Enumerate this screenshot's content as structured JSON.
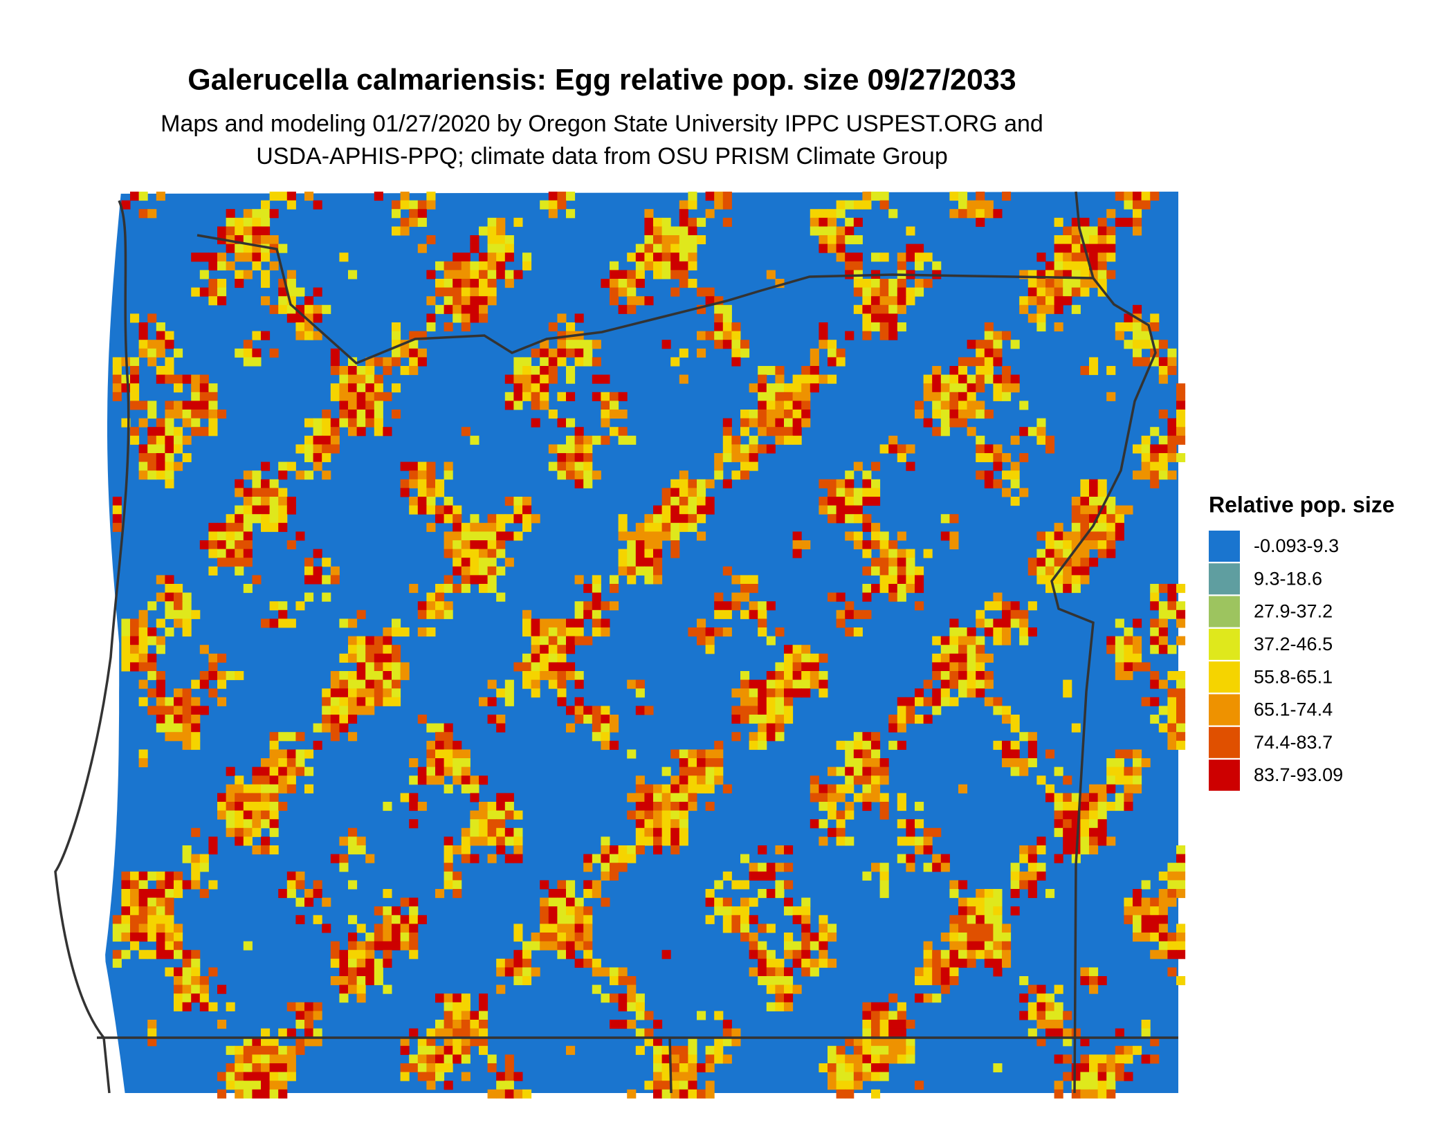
{
  "title": "Galerucella calmariensis: Egg relative pop. size 09/27/2033",
  "subtitle": [
    "Maps and modeling 01/27/2020 by Oregon State University IPPC USPEST.ORG and",
    "USDA-APHIS-PPQ; climate data from OSU PRISM Climate Group"
  ],
  "legend": {
    "title": "Relative pop. size",
    "items": [
      {
        "label": "-0.093-9.3",
        "color": "#1a75cf"
      },
      {
        "label": "9.3-18.6",
        "color": "#5f9ea0"
      },
      {
        "label": "27.9-37.2",
        "color": "#9dc45f"
      },
      {
        "label": "37.2-46.5",
        "color": "#dfe81c"
      },
      {
        "label": "55.8-65.1",
        "color": "#f5d400"
      },
      {
        "label": "65.1-74.4",
        "color": "#ee9200"
      },
      {
        "label": "74.4-83.7",
        "color": "#e05000"
      },
      {
        "label": "83.7-93.09",
        "color": "#cd0000"
      }
    ]
  }
}
